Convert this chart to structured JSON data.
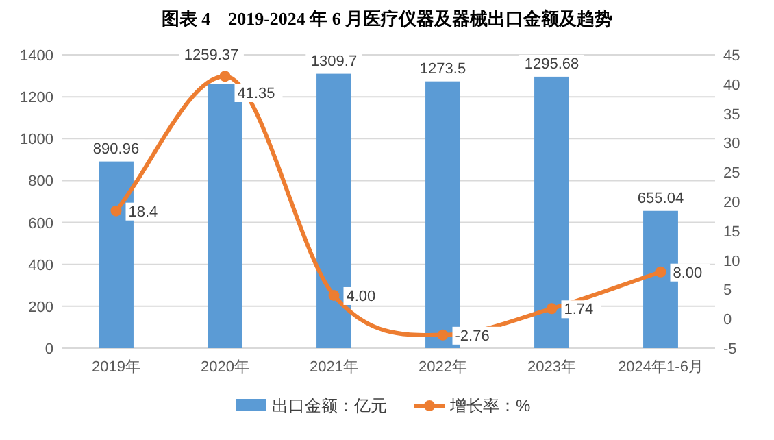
{
  "chart_data": {
    "type": "bar",
    "title": "图表 4　2019-2024 年 6 月医疗仪器及器械出口金额及趋势",
    "categories": [
      "2019年",
      "2020年",
      "2021年",
      "2022年",
      "2023年",
      "2024年1-6月"
    ],
    "series": [
      {
        "name": "出口金额：亿元",
        "color": "#5b9bd5",
        "values": [
          890.96,
          1259.37,
          1309.7,
          1273.5,
          1295.68,
          655.04
        ],
        "value_labels": [
          "890.96",
          "1259.37",
          "1309.7",
          "1273.5",
          "1295.68",
          "655.04"
        ]
      },
      {
        "name": "增长率：%",
        "type": "line",
        "axis": "y2",
        "color": "#ed7d31",
        "marker": "circle",
        "values": [
          18.4,
          41.35,
          4.0,
          -2.76,
          1.74,
          8.0
        ],
        "value_labels": [
          "18.4",
          "41.35",
          "4.00",
          "-2.76",
          "1.74",
          "8.00"
        ]
      }
    ],
    "ylim": [
      0,
      1400
    ],
    "yticks": [
      0,
      200,
      400,
      600,
      800,
      1000,
      1200,
      1400
    ],
    "y2lim": [
      -5,
      45
    ],
    "y2ticks": [
      -5,
      0,
      5,
      10,
      15,
      20,
      25,
      30,
      35,
      40,
      45
    ],
    "grid": "y",
    "legend": "bottom"
  }
}
